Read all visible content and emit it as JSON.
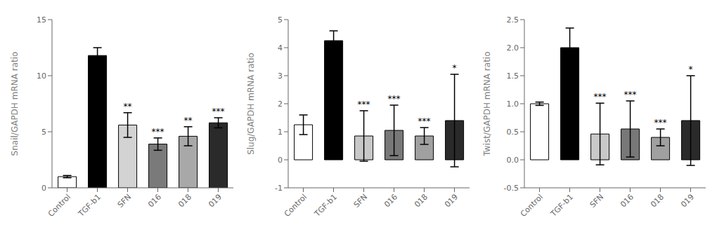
{
  "chart_data": [
    {
      "type": "bar",
      "ylabel": "Snail/GAPDH mRNA ratio",
      "categories": [
        "Control",
        "TGF-b1",
        "SFN",
        "016",
        "018",
        "019"
      ],
      "values": [
        1.0,
        11.8,
        5.6,
        3.9,
        4.6,
        5.8
      ],
      "errors": [
        0.1,
        0.7,
        1.1,
        0.55,
        0.85,
        0.45
      ],
      "colors": [
        "#ffffff",
        "#000000",
        "#d3d3d3",
        "#7a7a7a",
        "#a8a8a8",
        "#2a2a2a"
      ],
      "ylim": [
        0,
        15
      ],
      "yticks": [
        0,
        5,
        10,
        15
      ],
      "grid": false,
      "annotations": [
        {
          "category": "SFN",
          "text": "**"
        },
        {
          "category": "016",
          "text": "***"
        },
        {
          "category": "018",
          "text": "**"
        },
        {
          "category": "019",
          "text": "***"
        }
      ]
    },
    {
      "type": "bar",
      "ylabel": "Slug/GAPDH mRNA ratio",
      "categories": [
        "Control",
        "TGF-b1",
        "SFN",
        "016",
        "018",
        "019"
      ],
      "values": [
        1.25,
        4.25,
        0.85,
        1.05,
        0.85,
        1.4
      ],
      "errors": [
        0.35,
        0.35,
        0.9,
        0.9,
        0.3,
        1.65
      ],
      "colors": [
        "#ffffff",
        "#000000",
        "#c8c8c8",
        "#787878",
        "#a0a0a0",
        "#2a2a2a"
      ],
      "ylim": [
        -1,
        5
      ],
      "yticks": [
        -1,
        0,
        1,
        2,
        3,
        4,
        5
      ],
      "grid": false,
      "annotations": [
        {
          "category": "SFN",
          "text": "***"
        },
        {
          "category": "016",
          "text": "***"
        },
        {
          "category": "018",
          "text": "***"
        },
        {
          "category": "019",
          "text": "*"
        }
      ]
    },
    {
      "type": "bar",
      "ylabel": "Twist/GAPDH mRNA ratio",
      "categories": [
        "Control",
        "TGF-b1",
        "SFN",
        "016",
        "018",
        "019"
      ],
      "values": [
        1.0,
        2.0,
        0.46,
        0.55,
        0.4,
        0.7
      ],
      "errors": [
        0.03,
        0.35,
        0.55,
        0.5,
        0.15,
        0.8
      ],
      "colors": [
        "#ffffff",
        "#000000",
        "#c8c8c8",
        "#787878",
        "#a0a0a0",
        "#2a2a2a"
      ],
      "ylim": [
        -0.5,
        2.5
      ],
      "yticks": [
        -0.5,
        {
          "value": 0,
          "label": "0.0"
        },
        0.5,
        {
          "value": 1,
          "label": "1.0"
        },
        1.5,
        {
          "value": 2,
          "label": "2.0"
        },
        2.5
      ],
      "grid": false,
      "annotations": [
        {
          "category": "SFN",
          "text": "***"
        },
        {
          "category": "016",
          "text": "***"
        },
        {
          "category": "018",
          "text": "***"
        },
        {
          "category": "019",
          "text": "*"
        }
      ]
    }
  ]
}
